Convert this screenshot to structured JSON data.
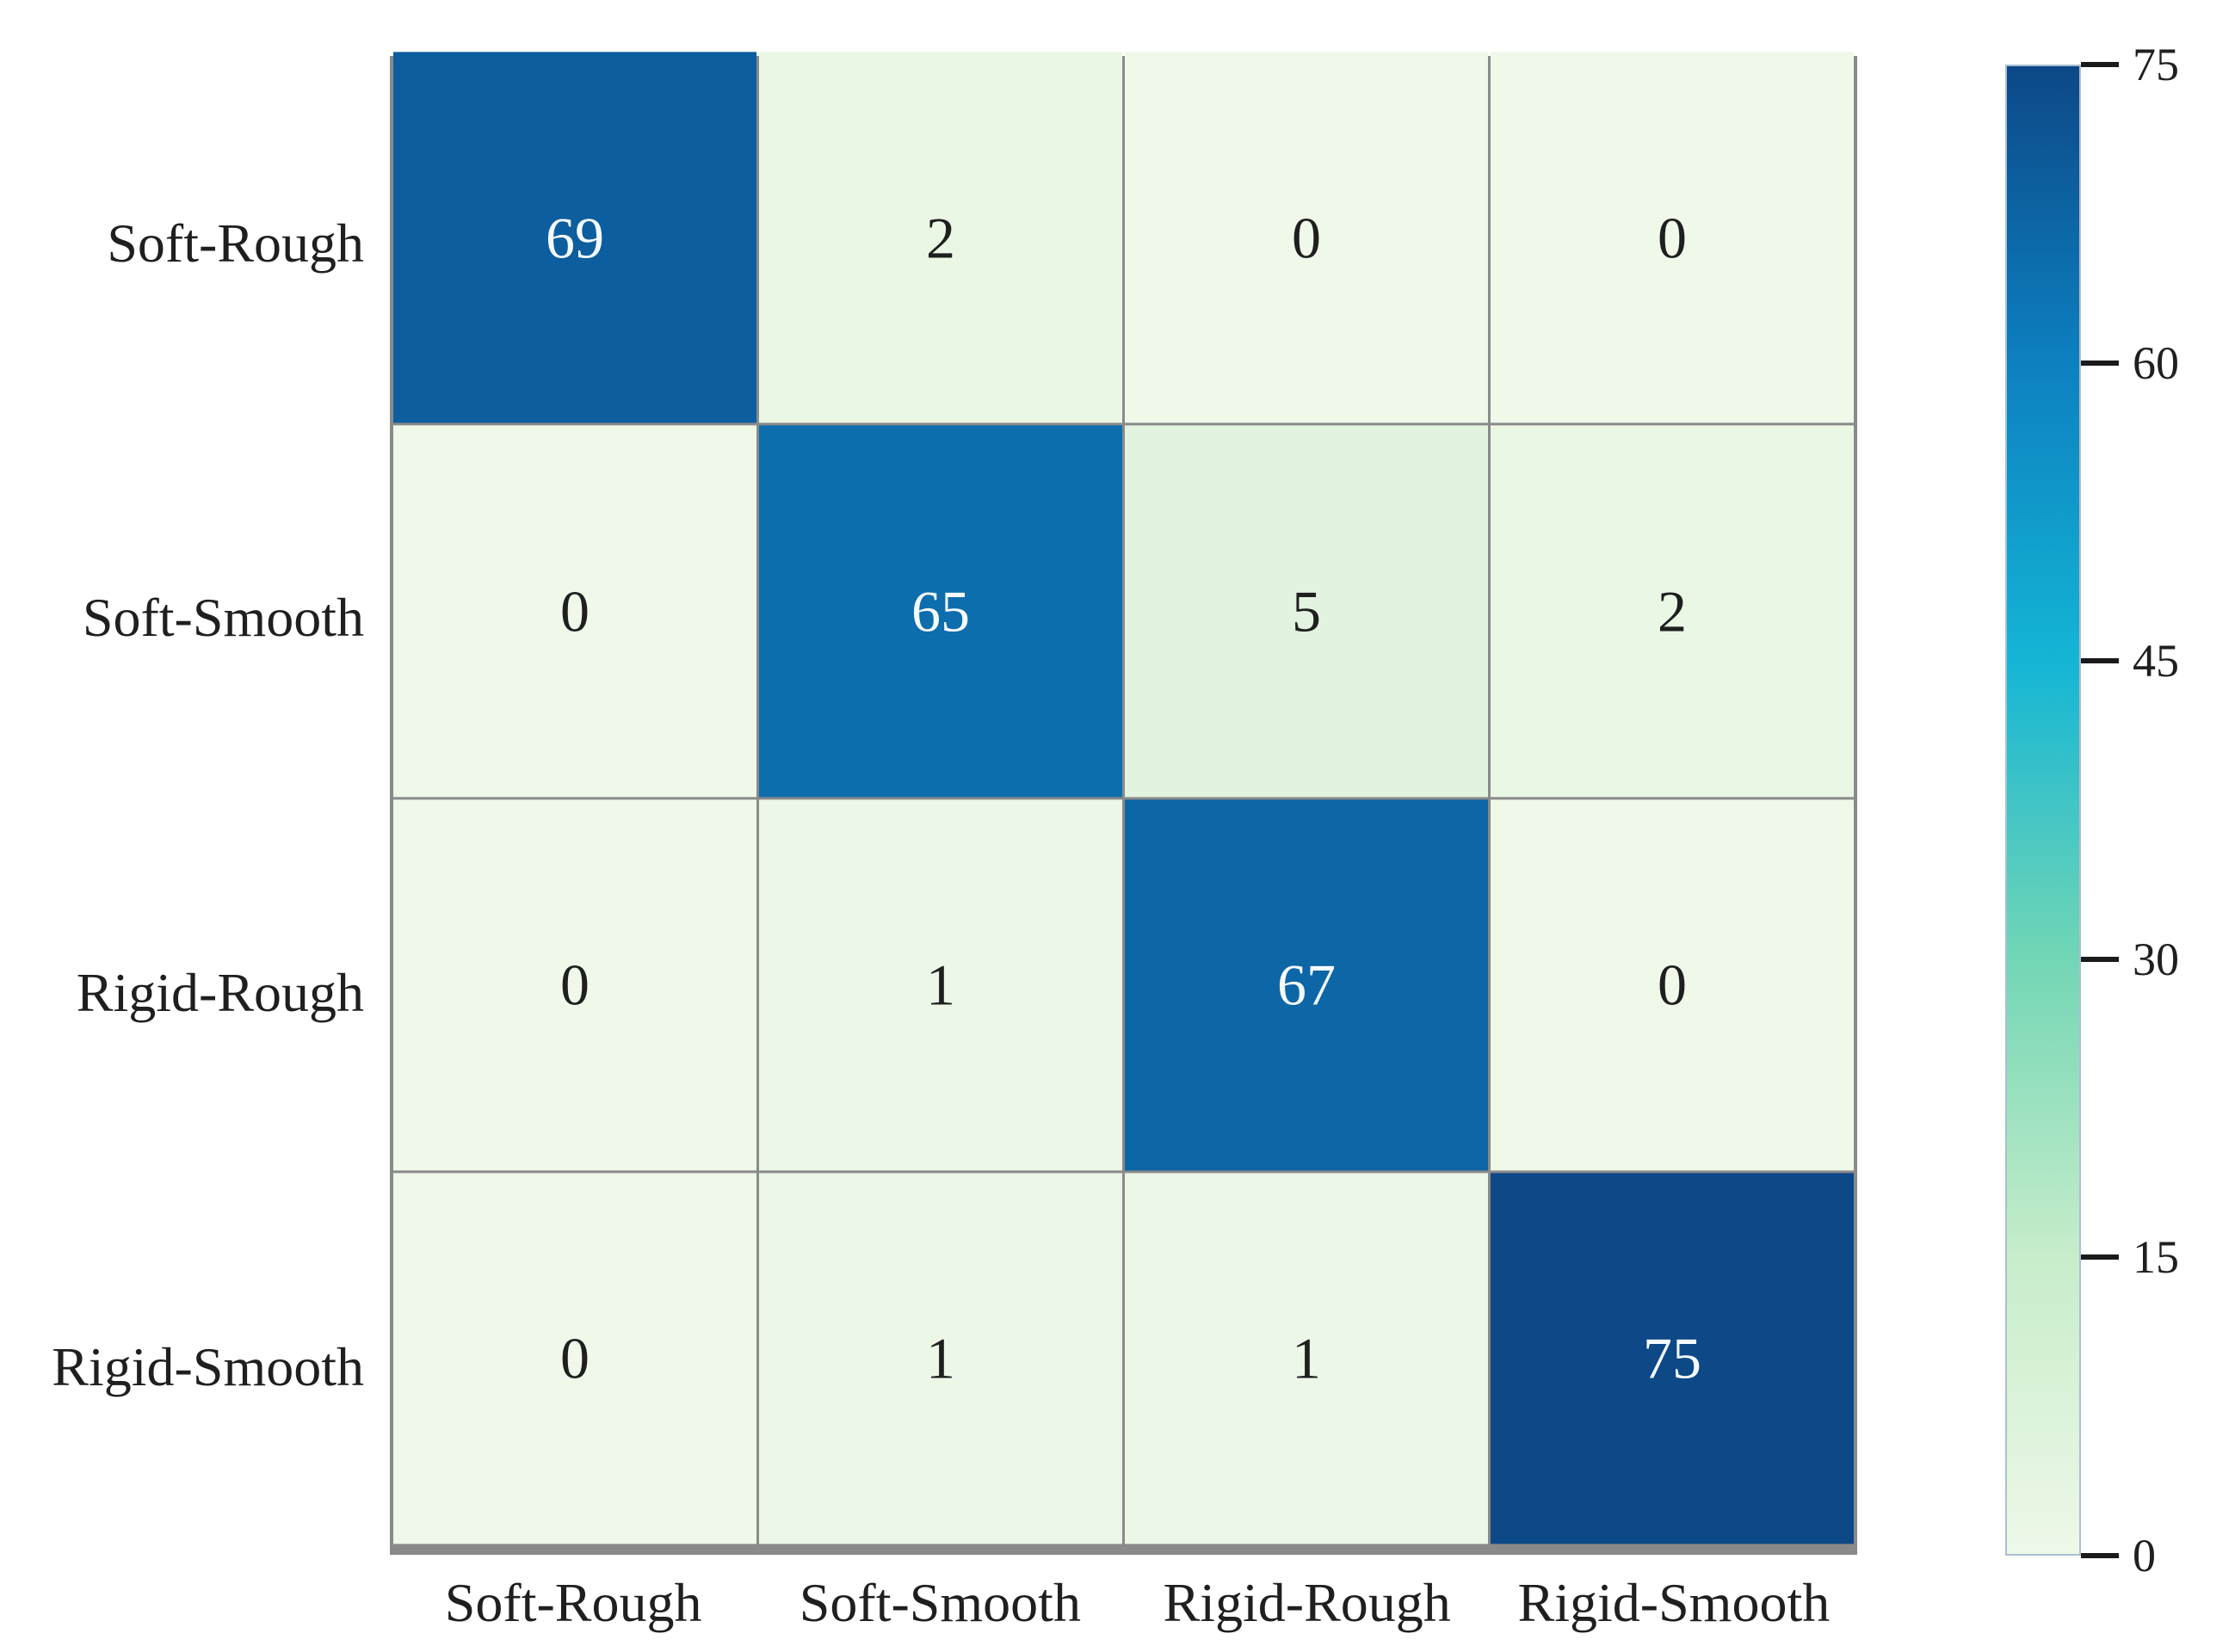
{
  "chart_data": {
    "type": "heatmap",
    "title": "",
    "xlabel": "",
    "ylabel": "",
    "x_categories": [
      "Soft-Rough",
      "Soft-Smooth",
      "Rigid-Rough",
      "Rigid-Smooth"
    ],
    "y_categories": [
      "Soft-Rough",
      "Soft-Smooth",
      "Rigid-Rough",
      "Rigid-Smooth"
    ],
    "matrix": [
      [
        69,
        2,
        0,
        0
      ],
      [
        0,
        65,
        5,
        2
      ],
      [
        0,
        1,
        67,
        0
      ],
      [
        0,
        1,
        1,
        75
      ]
    ],
    "colorbar": {
      "min": 0,
      "max": 75,
      "ticks": [
        75,
        60,
        45,
        30,
        15,
        0
      ],
      "stops": [
        {
          "value": 0,
          "color": "#eff8e9"
        },
        {
          "value": 15,
          "color": "#c7edcb"
        },
        {
          "value": 30,
          "color": "#72d6b5"
        },
        {
          "value": 45,
          "color": "#14b5d5"
        },
        {
          "value": 60,
          "color": "#0d80c0"
        },
        {
          "value": 75,
          "color": "#0d4887"
        }
      ],
      "legend_position": "right"
    },
    "grid_on": true,
    "annotations": "cell counts printed in each cell"
  },
  "figure": {
    "background_color": "#ffffff",
    "grid_line_color": "#8a8a8a",
    "cell_text_color_light_bg": "#1f1f1f",
    "cell_text_color_dark_bg": "#f5faff",
    "text_color_threshold": 37.5
  }
}
